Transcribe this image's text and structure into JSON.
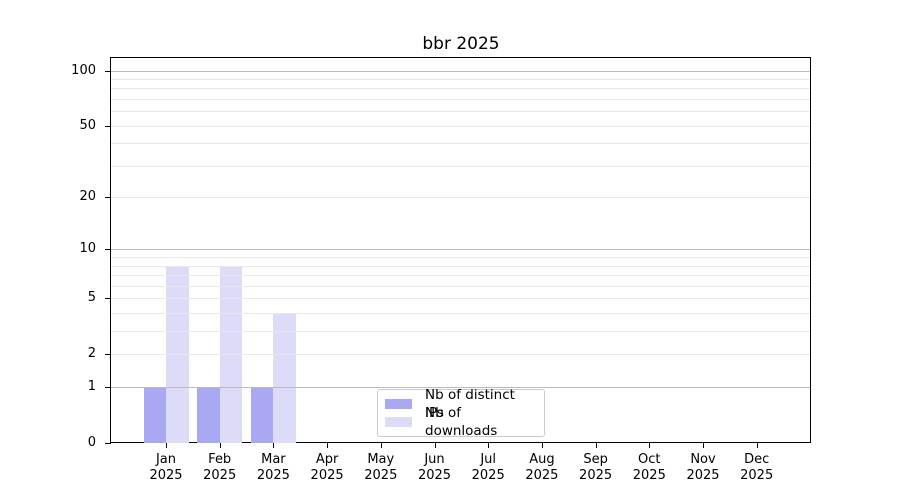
{
  "chart_data": {
    "type": "bar",
    "title": "bbr 2025",
    "x_axis": {
      "months": [
        "Jan",
        "Feb",
        "Mar",
        "Apr",
        "May",
        "Jun",
        "Jul",
        "Aug",
        "Sep",
        "Oct",
        "Nov",
        "Dec"
      ],
      "year": "2025"
    },
    "series": [
      {
        "name": "Nb of distinct IPs",
        "color": "#a8a8f3",
        "values": [
          1,
          1,
          1,
          0,
          0,
          0,
          0,
          0,
          0,
          0,
          0,
          0
        ]
      },
      {
        "name": "Nb of downloads",
        "color": "#dcdcf8",
        "values": [
          8,
          8,
          4,
          0,
          0,
          0,
          0,
          0,
          0,
          0,
          0,
          0
        ]
      }
    ],
    "y_axis": {
      "scale": "log10(1+value)",
      "tick_values": [
        0,
        1,
        2,
        5,
        10,
        20,
        50,
        100
      ],
      "major_gridlines": [
        1,
        10,
        100
      ],
      "minor_gridlines": [
        2,
        3,
        4,
        5,
        6,
        7,
        8,
        9,
        20,
        30,
        40,
        50,
        60,
        70,
        80,
        90
      ],
      "ylim": [
        0,
        117
      ],
      "grid": true
    },
    "legend": {
      "position": "lower center inside plot"
    }
  },
  "colors": {
    "bar_distinct_ips": "#a8a8f3",
    "bar_downloads": "#dcdcf8",
    "major_grid": "#bbbbbb",
    "minor_grid": "#e8e8e8",
    "spine": "#000000",
    "text": "#000000",
    "legend_border": "#cbcbcb"
  }
}
